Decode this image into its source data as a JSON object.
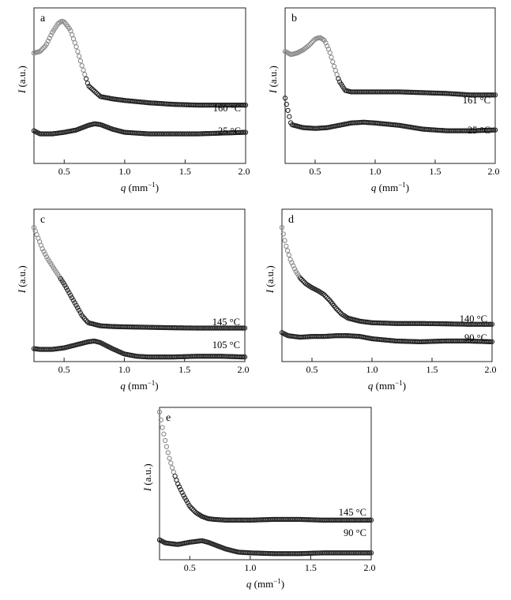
{
  "chart_data": [
    {
      "panel": "a",
      "type": "scatter",
      "xlabel_var": "q",
      "xlabel_unit": "(mm",
      "xlabel_exp": "−1",
      "xlabel_close": ")",
      "ylabel_var": "I",
      "ylabel_unit": "(a.u.)",
      "xlim": [
        0.25,
        2.0
      ],
      "xticks": [
        0.5,
        1.0,
        1.5,
        2.0
      ],
      "xtick_labels": [
        "0.5",
        "1.0",
        "1.5",
        "2.0"
      ],
      "grid": false,
      "series": [
        {
          "name": "160 °C",
          "x": [
            0.25,
            0.3,
            0.35,
            0.4,
            0.45,
            0.48,
            0.5,
            0.55,
            0.6,
            0.65,
            0.7,
            0.8,
            0.9,
            1.0,
            1.2,
            1.4,
            1.6,
            1.8,
            2.0
          ],
          "y": [
            0.71,
            0.72,
            0.76,
            0.84,
            0.9,
            0.915,
            0.91,
            0.86,
            0.75,
            0.62,
            0.5,
            0.43,
            0.415,
            0.405,
            0.39,
            0.38,
            0.375,
            0.375,
            0.375
          ]
        },
        {
          "name": "25 °C",
          "x": [
            0.25,
            0.3,
            0.4,
            0.5,
            0.6,
            0.7,
            0.75,
            0.8,
            0.9,
            1.0,
            1.2,
            1.4,
            1.6,
            1.8,
            2.0
          ],
          "y": [
            0.21,
            0.19,
            0.19,
            0.2,
            0.215,
            0.245,
            0.255,
            0.25,
            0.22,
            0.2,
            0.19,
            0.19,
            0.19,
            0.195,
            0.2
          ]
        }
      ]
    },
    {
      "panel": "b",
      "type": "scatter",
      "xlabel_var": "q",
      "xlabel_unit": "(mm",
      "xlabel_exp": "−1",
      "xlabel_close": ")",
      "ylabel_var": "I",
      "ylabel_unit": "(a.u.)",
      "xlim": [
        0.25,
        2.0
      ],
      "xticks": [
        0.5,
        1.0,
        1.5,
        2.0
      ],
      "xtick_labels": [
        "0.5",
        "1.0",
        "1.5",
        "2.0"
      ],
      "grid": false,
      "series": [
        {
          "name": "161 °C",
          "x": [
            0.25,
            0.3,
            0.35,
            0.4,
            0.45,
            0.5,
            0.54,
            0.58,
            0.62,
            0.66,
            0.7,
            0.75,
            0.8,
            0.9,
            1.0,
            1.2,
            1.4,
            1.6,
            1.8,
            2.0
          ],
          "y": [
            0.72,
            0.7,
            0.71,
            0.73,
            0.76,
            0.8,
            0.81,
            0.79,
            0.72,
            0.62,
            0.53,
            0.47,
            0.46,
            0.46,
            0.46,
            0.46,
            0.455,
            0.45,
            0.44,
            0.44
          ]
        },
        {
          "name": "25 °C",
          "x": [
            0.25,
            0.3,
            0.4,
            0.5,
            0.6,
            0.7,
            0.8,
            0.9,
            1.0,
            1.2,
            1.4,
            1.6,
            1.8,
            2.0
          ],
          "y": [
            0.42,
            0.25,
            0.23,
            0.225,
            0.23,
            0.245,
            0.26,
            0.265,
            0.26,
            0.245,
            0.22,
            0.21,
            0.21,
            0.215
          ]
        }
      ]
    },
    {
      "panel": "c",
      "type": "scatter",
      "xlabel_var": "q",
      "xlabel_unit": "(mm",
      "xlabel_exp": "−1",
      "xlabel_close": ")",
      "ylabel_var": "I",
      "ylabel_unit": "(a.u.)",
      "xlim": [
        0.25,
        2.0
      ],
      "xticks": [
        0.5,
        1.0,
        1.5,
        2.0
      ],
      "xtick_labels": [
        "0.5",
        "1.0",
        "1.5",
        "2.0"
      ],
      "grid": false,
      "series": [
        {
          "name": "145 °C",
          "x": [
            0.25,
            0.28,
            0.32,
            0.36,
            0.4,
            0.45,
            0.5,
            0.55,
            0.6,
            0.65,
            0.7,
            0.8,
            0.9,
            1.0,
            1.2,
            1.4,
            1.6,
            1.8,
            2.0
          ],
          "y": [
            0.88,
            0.82,
            0.74,
            0.68,
            0.63,
            0.57,
            0.51,
            0.44,
            0.37,
            0.3,
            0.255,
            0.235,
            0.23,
            0.228,
            0.225,
            0.222,
            0.22,
            0.22,
            0.22
          ]
        },
        {
          "name": "105 °C",
          "x": [
            0.25,
            0.3,
            0.4,
            0.5,
            0.6,
            0.7,
            0.75,
            0.8,
            0.9,
            1.0,
            1.1,
            1.2,
            1.4,
            1.6,
            1.8,
            2.0
          ],
          "y": [
            0.085,
            0.08,
            0.08,
            0.09,
            0.11,
            0.13,
            0.135,
            0.125,
            0.085,
            0.05,
            0.035,
            0.03,
            0.03,
            0.035,
            0.035,
            0.03
          ]
        }
      ]
    },
    {
      "panel": "d",
      "type": "scatter",
      "xlabel_var": "q",
      "xlabel_unit": "(mm",
      "xlabel_exp": "−1",
      "xlabel_close": ")",
      "ylabel_var": "I",
      "ylabel_unit": "(a.u.)",
      "xlim": [
        0.25,
        2.0
      ],
      "xticks": [
        0.5,
        1.0,
        1.5,
        2.0
      ],
      "xtick_labels": [
        "0.5",
        "1.0",
        "1.5",
        "2.0"
      ],
      "grid": false,
      "series": [
        {
          "name": "140 °C",
          "x": [
            0.25,
            0.28,
            0.32,
            0.36,
            0.4,
            0.45,
            0.5,
            0.55,
            0.6,
            0.65,
            0.7,
            0.75,
            0.8,
            0.9,
            1.0,
            1.2,
            1.4,
            1.6,
            1.8,
            2.0
          ],
          "y": [
            0.88,
            0.77,
            0.67,
            0.6,
            0.55,
            0.51,
            0.485,
            0.465,
            0.44,
            0.4,
            0.35,
            0.31,
            0.285,
            0.265,
            0.255,
            0.25,
            0.25,
            0.248,
            0.245,
            0.245
          ]
        },
        {
          "name": "90 °C",
          "x": [
            0.25,
            0.3,
            0.4,
            0.5,
            0.6,
            0.7,
            0.8,
            0.9,
            1.0,
            1.2,
            1.4,
            1.6,
            1.8,
            2.0
          ],
          "y": [
            0.19,
            0.17,
            0.16,
            0.165,
            0.165,
            0.17,
            0.17,
            0.165,
            0.15,
            0.135,
            0.13,
            0.135,
            0.135,
            0.13
          ]
        }
      ]
    },
    {
      "panel": "e",
      "type": "scatter",
      "xlabel_var": "q",
      "xlabel_unit": "(mm",
      "xlabel_exp": "−1",
      "xlabel_close": ")",
      "ylabel_var": "I",
      "ylabel_unit": "(a.u.)",
      "xlim": [
        0.25,
        2.0
      ],
      "xticks": [
        0.5,
        1.0,
        1.5,
        2.0
      ],
      "xtick_labels": [
        "0.5",
        "1.0",
        "1.5",
        "2.0"
      ],
      "grid": false,
      "series": [
        {
          "name": "145 °C",
          "x": [
            0.25,
            0.27,
            0.3,
            0.33,
            0.36,
            0.4,
            0.45,
            0.5,
            0.55,
            0.6,
            0.65,
            0.7,
            0.8,
            0.9,
            1.0,
            1.2,
            1.4,
            1.6,
            1.8,
            2.0
          ],
          "y": [
            0.97,
            0.88,
            0.77,
            0.67,
            0.59,
            0.5,
            0.42,
            0.35,
            0.31,
            0.285,
            0.27,
            0.265,
            0.26,
            0.26,
            0.26,
            0.265,
            0.265,
            0.26,
            0.26,
            0.26
          ]
        },
        {
          "name": "90 °C",
          "x": [
            0.25,
            0.3,
            0.4,
            0.5,
            0.55,
            0.6,
            0.65,
            0.7,
            0.8,
            0.9,
            1.0,
            1.2,
            1.4,
            1.6,
            1.8,
            2.0
          ],
          "y": [
            0.13,
            0.11,
            0.1,
            0.115,
            0.12,
            0.125,
            0.115,
            0.1,
            0.07,
            0.05,
            0.045,
            0.04,
            0.04,
            0.045,
            0.045,
            0.045
          ]
        }
      ]
    }
  ]
}
